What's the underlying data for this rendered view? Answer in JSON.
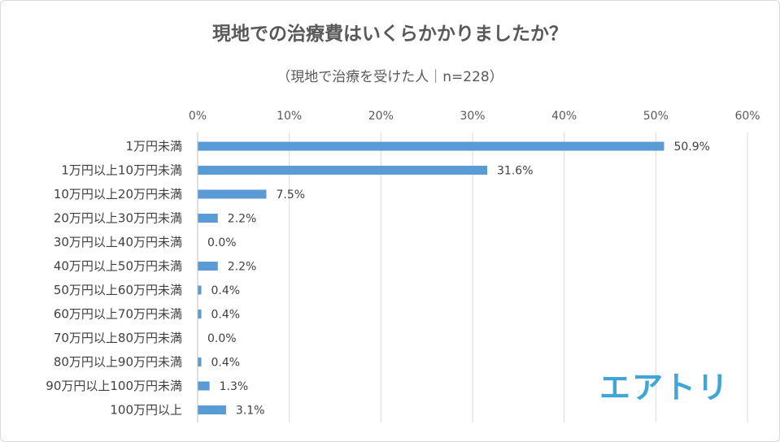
{
  "chart_data": {
    "type": "bar",
    "orientation": "horizontal",
    "title": "現地での治療費はいくらかかりましたか？",
    "subtitle": "（現地で治療を受けた人｜n=228）",
    "categories": [
      "1万円未満",
      "1万円以上10万円未満",
      "10万円以上20万円未満",
      "20万円以上30万円未満",
      "30万円以上40万円未満",
      "40万円以上50万円未満",
      "50万円以上60万円未満",
      "60万円以上70万円未満",
      "70万円以上80万円未満",
      "80万円以上90万円未満",
      "90万円以上100万円未満",
      "100万円以上"
    ],
    "values": [
      50.9,
      31.6,
      7.5,
      2.2,
      0.0,
      2.2,
      0.4,
      0.4,
      0.0,
      0.4,
      1.3,
      3.1
    ],
    "value_labels": [
      "50.9%",
      "31.6%",
      "7.5%",
      "2.2%",
      "0.0%",
      "2.2%",
      "0.4%",
      "0.4%",
      "0.0%",
      "0.4%",
      "1.3%",
      "3.1%"
    ],
    "xticks": [
      "0%",
      "10%",
      "20%",
      "30%",
      "40%",
      "50%",
      "60%"
    ],
    "xlim": [
      0,
      60
    ],
    "xlabel": "",
    "ylabel": "",
    "grid": "vertical",
    "bar_color": "#5b9bd5",
    "legend": "none"
  },
  "logo": {
    "text": "エアトリ",
    "color": "#3ea7d8"
  }
}
